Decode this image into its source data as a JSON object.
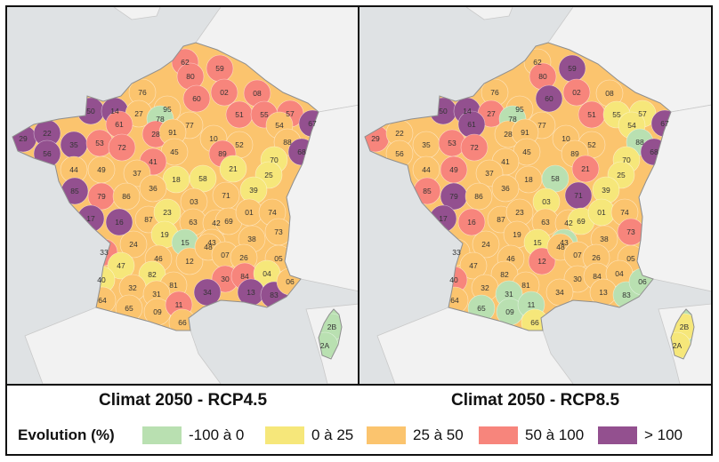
{
  "colors": {
    "c1": "#b9e0b1",
    "c2": "#f6e77a",
    "c3": "#fbc46e",
    "c4": "#f7857c",
    "c5": "#93508f",
    "land_neighbors": "#f2f2f2",
    "sea": "#dfe2e4"
  },
  "maps": [
    {
      "title": "Climat 2050 - RCP4.5",
      "departments": [
        {
          "code": "62",
          "cat": "c4"
        },
        {
          "code": "59",
          "cat": "c4"
        },
        {
          "code": "80",
          "cat": "c4"
        },
        {
          "code": "02",
          "cat": "c4"
        },
        {
          "code": "08",
          "cat": "c4"
        },
        {
          "code": "76",
          "cat": "c3"
        },
        {
          "code": "60",
          "cat": "c4"
        },
        {
          "code": "50",
          "cat": "c5"
        },
        {
          "code": "14",
          "cat": "c5"
        },
        {
          "code": "27",
          "cat": "c3"
        },
        {
          "code": "95",
          "cat": "c3"
        },
        {
          "code": "78",
          "cat": "c1"
        },
        {
          "code": "77",
          "cat": "c3"
        },
        {
          "code": "51",
          "cat": "c4"
        },
        {
          "code": "55",
          "cat": "c4"
        },
        {
          "code": "57",
          "cat": "c4"
        },
        {
          "code": "67",
          "cat": "c5"
        },
        {
          "code": "54",
          "cat": "c3"
        },
        {
          "code": "29",
          "cat": "c5"
        },
        {
          "code": "22",
          "cat": "c5"
        },
        {
          "code": "35",
          "cat": "c5"
        },
        {
          "code": "56",
          "cat": "c5"
        },
        {
          "code": "53",
          "cat": "c4"
        },
        {
          "code": "61",
          "cat": "c4"
        },
        {
          "code": "72",
          "cat": "c4"
        },
        {
          "code": "28",
          "cat": "c4"
        },
        {
          "code": "91",
          "cat": "c3"
        },
        {
          "code": "45",
          "cat": "c3"
        },
        {
          "code": "10",
          "cat": "c3"
        },
        {
          "code": "52",
          "cat": "c3"
        },
        {
          "code": "88",
          "cat": "c3"
        },
        {
          "code": "68",
          "cat": "c5"
        },
        {
          "code": "89",
          "cat": "c4"
        },
        {
          "code": "41",
          "cat": "c4"
        },
        {
          "code": "44",
          "cat": "c3"
        },
        {
          "code": "49",
          "cat": "c3"
        },
        {
          "code": "37",
          "cat": "c3"
        },
        {
          "code": "18",
          "cat": "c2"
        },
        {
          "code": "58",
          "cat": "c2"
        },
        {
          "code": "21",
          "cat": "c2"
        },
        {
          "code": "70",
          "cat": "c2"
        },
        {
          "code": "25",
          "cat": "c2"
        },
        {
          "code": "85",
          "cat": "c5"
        },
        {
          "code": "79",
          "cat": "c4"
        },
        {
          "code": "86",
          "cat": "c3"
        },
        {
          "code": "36",
          "cat": "c3"
        },
        {
          "code": "03",
          "cat": "c3"
        },
        {
          "code": "71",
          "cat": "c3"
        },
        {
          "code": "39",
          "cat": "c2"
        },
        {
          "code": "17",
          "cat": "c5"
        },
        {
          "code": "16",
          "cat": "c5"
        },
        {
          "code": "87",
          "cat": "c3"
        },
        {
          "code": "23",
          "cat": "c2"
        },
        {
          "code": "63",
          "cat": "c3"
        },
        {
          "code": "42",
          "cat": "c3"
        },
        {
          "code": "69",
          "cat": "c3"
        },
        {
          "code": "01",
          "cat": "c3"
        },
        {
          "code": "74",
          "cat": "c3"
        },
        {
          "code": "73",
          "cat": "c3"
        },
        {
          "code": "38",
          "cat": "c3"
        },
        {
          "code": "24",
          "cat": "c3"
        },
        {
          "code": "19",
          "cat": "c2"
        },
        {
          "code": "15",
          "cat": "c1"
        },
        {
          "code": "43",
          "cat": "c3"
        },
        {
          "code": "33",
          "cat": "c4"
        },
        {
          "code": "46",
          "cat": "c3"
        },
        {
          "code": "12",
          "cat": "c3"
        },
        {
          "code": "48",
          "cat": "c3"
        },
        {
          "code": "07",
          "cat": "c3"
        },
        {
          "code": "26",
          "cat": "c3"
        },
        {
          "code": "05",
          "cat": "c3"
        },
        {
          "code": "47",
          "cat": "c2"
        },
        {
          "code": "82",
          "cat": "c2"
        },
        {
          "code": "30",
          "cat": "c4"
        },
        {
          "code": "84",
          "cat": "c4"
        },
        {
          "code": "04",
          "cat": "c2"
        },
        {
          "code": "40",
          "cat": "c2"
        },
        {
          "code": "32",
          "cat": "c3"
        },
        {
          "code": "81",
          "cat": "c3"
        },
        {
          "code": "34",
          "cat": "c5"
        },
        {
          "code": "13",
          "cat": "c5"
        },
        {
          "code": "83",
          "cat": "c5"
        },
        {
          "code": "06",
          "cat": "c3"
        },
        {
          "code": "64",
          "cat": "c3"
        },
        {
          "code": "65",
          "cat": "c3"
        },
        {
          "code": "31",
          "cat": "c3"
        },
        {
          "code": "09",
          "cat": "c3"
        },
        {
          "code": "11",
          "cat": "c4"
        },
        {
          "code": "66",
          "cat": "c3"
        },
        {
          "code": "2B",
          "cat": "c1"
        },
        {
          "code": "2A",
          "cat": "c1"
        }
      ]
    },
    {
      "title": "Climat 2050 - RCP8.5",
      "departments": [
        {
          "code": "62",
          "cat": "c3"
        },
        {
          "code": "59",
          "cat": "c5"
        },
        {
          "code": "80",
          "cat": "c4"
        },
        {
          "code": "02",
          "cat": "c4"
        },
        {
          "code": "08",
          "cat": "c3"
        },
        {
          "code": "76",
          "cat": "c3"
        },
        {
          "code": "60",
          "cat": "c5"
        },
        {
          "code": "50",
          "cat": "c5"
        },
        {
          "code": "14",
          "cat": "c5"
        },
        {
          "code": "27",
          "cat": "c4"
        },
        {
          "code": "95",
          "cat": "c3"
        },
        {
          "code": "78",
          "cat": "c1"
        },
        {
          "code": "77",
          "cat": "c3"
        },
        {
          "code": "51",
          "cat": "c4"
        },
        {
          "code": "55",
          "cat": "c2"
        },
        {
          "code": "57",
          "cat": "c2"
        },
        {
          "code": "67",
          "cat": "c5"
        },
        {
          "code": "54",
          "cat": "c2"
        },
        {
          "code": "29",
          "cat": "c4"
        },
        {
          "code": "22",
          "cat": "c3"
        },
        {
          "code": "35",
          "cat": "c3"
        },
        {
          "code": "56",
          "cat": "c3"
        },
        {
          "code": "53",
          "cat": "c4"
        },
        {
          "code": "61",
          "cat": "c5"
        },
        {
          "code": "72",
          "cat": "c4"
        },
        {
          "code": "28",
          "cat": "c3"
        },
        {
          "code": "91",
          "cat": "c3"
        },
        {
          "code": "45",
          "cat": "c3"
        },
        {
          "code": "10",
          "cat": "c3"
        },
        {
          "code": "52",
          "cat": "c3"
        },
        {
          "code": "88",
          "cat": "c1"
        },
        {
          "code": "68",
          "cat": "c5"
        },
        {
          "code": "89",
          "cat": "c3"
        },
        {
          "code": "41",
          "cat": "c3"
        },
        {
          "code": "44",
          "cat": "c3"
        },
        {
          "code": "49",
          "cat": "c4"
        },
        {
          "code": "37",
          "cat": "c3"
        },
        {
          "code": "18",
          "cat": "c3"
        },
        {
          "code": "58",
          "cat": "c1"
        },
        {
          "code": "21",
          "cat": "c4"
        },
        {
          "code": "70",
          "cat": "c2"
        },
        {
          "code": "25",
          "cat": "c2"
        },
        {
          "code": "85",
          "cat": "c4"
        },
        {
          "code": "79",
          "cat": "c5"
        },
        {
          "code": "86",
          "cat": "c3"
        },
        {
          "code": "36",
          "cat": "c3"
        },
        {
          "code": "03",
          "cat": "c2"
        },
        {
          "code": "71",
          "cat": "c5"
        },
        {
          "code": "39",
          "cat": "c2"
        },
        {
          "code": "17",
          "cat": "c5"
        },
        {
          "code": "16",
          "cat": "c4"
        },
        {
          "code": "87",
          "cat": "c3"
        },
        {
          "code": "23",
          "cat": "c3"
        },
        {
          "code": "63",
          "cat": "c3"
        },
        {
          "code": "42",
          "cat": "c3"
        },
        {
          "code": "69",
          "cat": "c2"
        },
        {
          "code": "01",
          "cat": "c2"
        },
        {
          "code": "74",
          "cat": "c3"
        },
        {
          "code": "73",
          "cat": "c4"
        },
        {
          "code": "38",
          "cat": "c3"
        },
        {
          "code": "24",
          "cat": "c3"
        },
        {
          "code": "19",
          "cat": "c3"
        },
        {
          "code": "15",
          "cat": "c2"
        },
        {
          "code": "43",
          "cat": "c1"
        },
        {
          "code": "33",
          "cat": "c3"
        },
        {
          "code": "46",
          "cat": "c3"
        },
        {
          "code": "12",
          "cat": "c4"
        },
        {
          "code": "48",
          "cat": "c3"
        },
        {
          "code": "07",
          "cat": "c3"
        },
        {
          "code": "26",
          "cat": "c3"
        },
        {
          "code": "05",
          "cat": "c3"
        },
        {
          "code": "47",
          "cat": "c3"
        },
        {
          "code": "82",
          "cat": "c3"
        },
        {
          "code": "30",
          "cat": "c3"
        },
        {
          "code": "84",
          "cat": "c3"
        },
        {
          "code": "04",
          "cat": "c3"
        },
        {
          "code": "40",
          "cat": "c4"
        },
        {
          "code": "32",
          "cat": "c3"
        },
        {
          "code": "81",
          "cat": "c3"
        },
        {
          "code": "34",
          "cat": "c3"
        },
        {
          "code": "13",
          "cat": "c3"
        },
        {
          "code": "83",
          "cat": "c1"
        },
        {
          "code": "06",
          "cat": "c1"
        },
        {
          "code": "64",
          "cat": "c3"
        },
        {
          "code": "65",
          "cat": "c1"
        },
        {
          "code": "31",
          "cat": "c1"
        },
        {
          "code": "09",
          "cat": "c1"
        },
        {
          "code": "11",
          "cat": "c1"
        },
        {
          "code": "66",
          "cat": "c2"
        },
        {
          "code": "2B",
          "cat": "c2"
        },
        {
          "code": "2A",
          "cat": "c2"
        }
      ]
    }
  ],
  "legend": {
    "title": "Evolution (%)",
    "items": [
      {
        "label": "-100 à 0",
        "cat": "c1"
      },
      {
        "label": "0 à 25",
        "cat": "c2"
      },
      {
        "label": "25 à 50",
        "cat": "c3"
      },
      {
        "label": "50 à 100",
        "cat": "c4"
      },
      {
        "label": "> 100",
        "cat": "c5"
      }
    ]
  }
}
